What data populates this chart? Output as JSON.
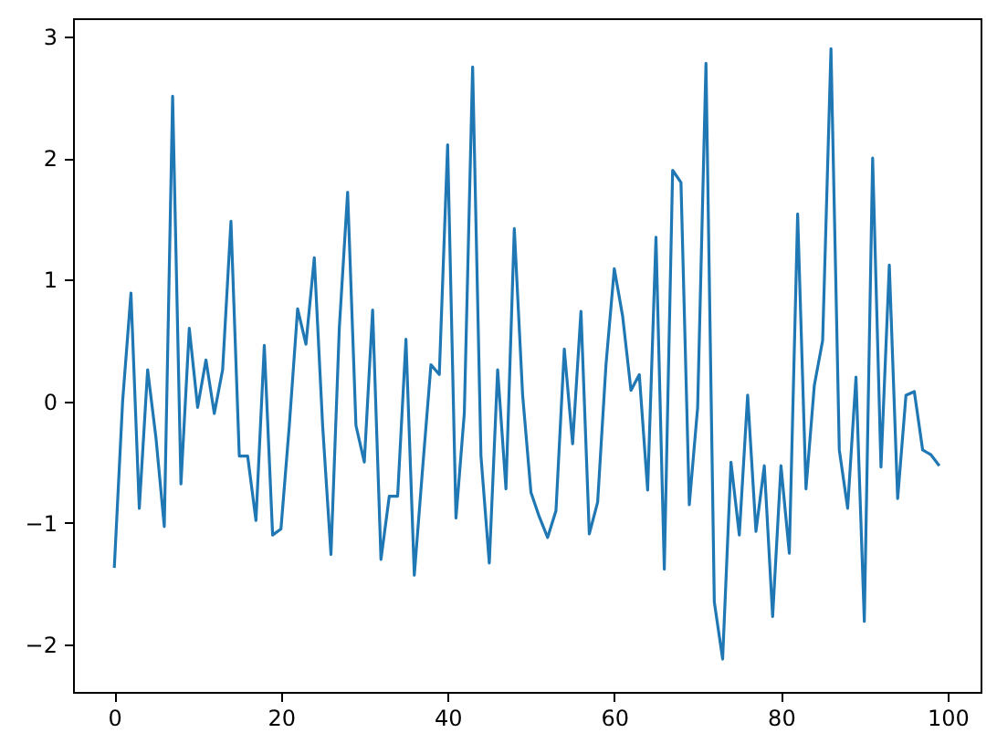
{
  "chart_data": {
    "type": "line",
    "x": [
      0,
      1,
      2,
      3,
      4,
      5,
      6,
      7,
      8,
      9,
      10,
      11,
      12,
      13,
      14,
      15,
      16,
      17,
      18,
      19,
      20,
      21,
      22,
      23,
      24,
      25,
      26,
      27,
      28,
      29,
      30,
      31,
      32,
      33,
      34,
      35,
      36,
      37,
      38,
      39,
      40,
      41,
      42,
      43,
      44,
      45,
      46,
      47,
      48,
      49,
      50,
      51,
      52,
      53,
      54,
      55,
      56,
      57,
      58,
      59,
      60,
      61,
      62,
      63,
      64,
      65,
      66,
      67,
      68,
      69,
      70,
      71,
      72,
      73,
      74,
      75,
      76,
      77,
      78,
      79,
      80,
      81,
      82,
      83,
      84,
      85,
      86,
      87,
      88,
      89,
      90,
      91,
      92,
      93,
      94,
      95,
      96,
      97,
      98,
      99
    ],
    "series": [
      {
        "color": "#1f77b4",
        "values": [
          -1.37,
          0.0,
          0.89,
          -0.88,
          0.26,
          -0.3,
          -1.03,
          2.51,
          -0.68,
          0.6,
          -0.05,
          0.34,
          -0.1,
          0.26,
          1.48,
          -0.45,
          -0.45,
          -0.98,
          0.46,
          -1.1,
          -1.05,
          -0.2,
          0.76,
          0.47,
          1.18,
          -0.2,
          -1.26,
          0.6,
          1.72,
          -0.2,
          -0.5,
          0.75,
          -1.3,
          -0.78,
          -0.78,
          0.51,
          -1.43,
          -0.55,
          0.3,
          0.22,
          2.11,
          -0.96,
          -0.1,
          2.75,
          -0.45,
          -1.33,
          0.26,
          -0.72,
          1.42,
          0.05,
          -0.75,
          -0.95,
          -1.12,
          -0.9,
          0.43,
          -0.35,
          0.74,
          -1.09,
          -0.83,
          0.3,
          1.09,
          0.7,
          0.09,
          0.22,
          -0.73,
          1.35,
          -1.38,
          1.9,
          1.8,
          -0.85,
          -0.05,
          2.78,
          -1.65,
          -2.12,
          -0.5,
          -1.1,
          0.05,
          -1.07,
          -0.53,
          -1.77,
          -0.53,
          -1.25,
          1.54,
          -0.72,
          0.13,
          0.5,
          2.9,
          -0.4,
          -0.88,
          0.2,
          -1.81,
          2.0,
          -0.54,
          1.12,
          -0.8,
          0.05,
          0.08,
          -0.4,
          -0.44,
          -0.53
        ]
      }
    ],
    "xlim": [
      -4.95,
      103.95
    ],
    "ylim": [
      -2.39,
      3.15
    ],
    "xticks": [
      0,
      20,
      40,
      60,
      80,
      100
    ],
    "yticks": [
      -2,
      -1,
      0,
      1,
      2,
      3
    ],
    "grid": false,
    "marker": "none",
    "line_style": "solid"
  }
}
